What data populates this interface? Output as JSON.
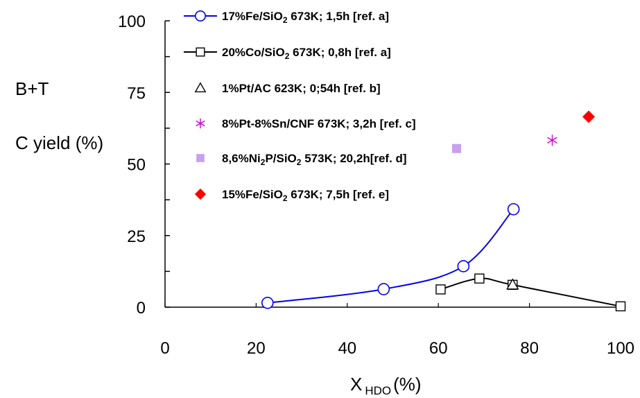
{
  "chart_data": {
    "type": "scatter",
    "xlabel_main": "X",
    "xlabel_sub": "HDO",
    "xlabel_unit": "(%)",
    "ylabel_line1": "B+T",
    "ylabel_line2": "C yield (%)",
    "xlim": [
      0,
      100
    ],
    "ylim": [
      0,
      100
    ],
    "x_ticks": [
      0,
      20,
      40,
      60,
      80,
      100
    ],
    "y_ticks": [
      0,
      25,
      50,
      75,
      100
    ],
    "x_tick_labels": [
      "0",
      "20",
      "40",
      "60",
      "80",
      "100"
    ],
    "y_tick_labels": [
      "0",
      "25",
      "50",
      "75",
      "100"
    ],
    "grid": false,
    "legend_position": "top",
    "series": [
      {
        "label_parts": [
          "17%Fe/SiO",
          "2",
          " 673K; 1,5h [ref. a]"
        ],
        "marker": "circle-open",
        "color": "#0000ee",
        "line": true,
        "x": [
          22.5,
          48,
          65.5,
          76.5
        ],
        "y": [
          1.5,
          6.3,
          14.3,
          34.2
        ]
      },
      {
        "label_parts": [
          "20%Co/SiO",
          "2",
          " 673K; 0,8h [ref. a]"
        ],
        "marker": "square-open",
        "color": "#000000",
        "line": true,
        "x": [
          60.5,
          69,
          76.3,
          100
        ],
        "y": [
          6.2,
          10,
          7.8,
          0.3
        ]
      },
      {
        "label_parts": [
          "1%Pt/AC 623K; 0;54h [ref. b]",
          "",
          ""
        ],
        "marker": "triangle-open",
        "color": "#000000",
        "line": false,
        "x": [
          76.3
        ],
        "y": [
          7.8
        ]
      },
      {
        "label_parts": [
          "8%Pt-8%Sn/CNF 673K; 3,2h [ref. c]",
          "",
          ""
        ],
        "marker": "star",
        "color": "#cc00cc",
        "line": false,
        "x": [
          85
        ],
        "y": [
          58.3
        ]
      },
      {
        "label_parts": [
          "8,6%Ni",
          "2",
          "P/SiO",
          "2",
          " 573K; 20,2h[ref. d]"
        ],
        "marker": "square-filled",
        "color": "#c9a0f0",
        "line": false,
        "x": [
          64
        ],
        "y": [
          55.4
        ]
      },
      {
        "label_parts": [
          "15%Fe/SiO",
          "2",
          " 673K; 7,5h",
          "",
          " [ref. e]"
        ],
        "marker": "diamond-filled",
        "color": "#ff0000",
        "line": false,
        "x": [
          93
        ],
        "y": [
          66.5
        ]
      }
    ]
  }
}
